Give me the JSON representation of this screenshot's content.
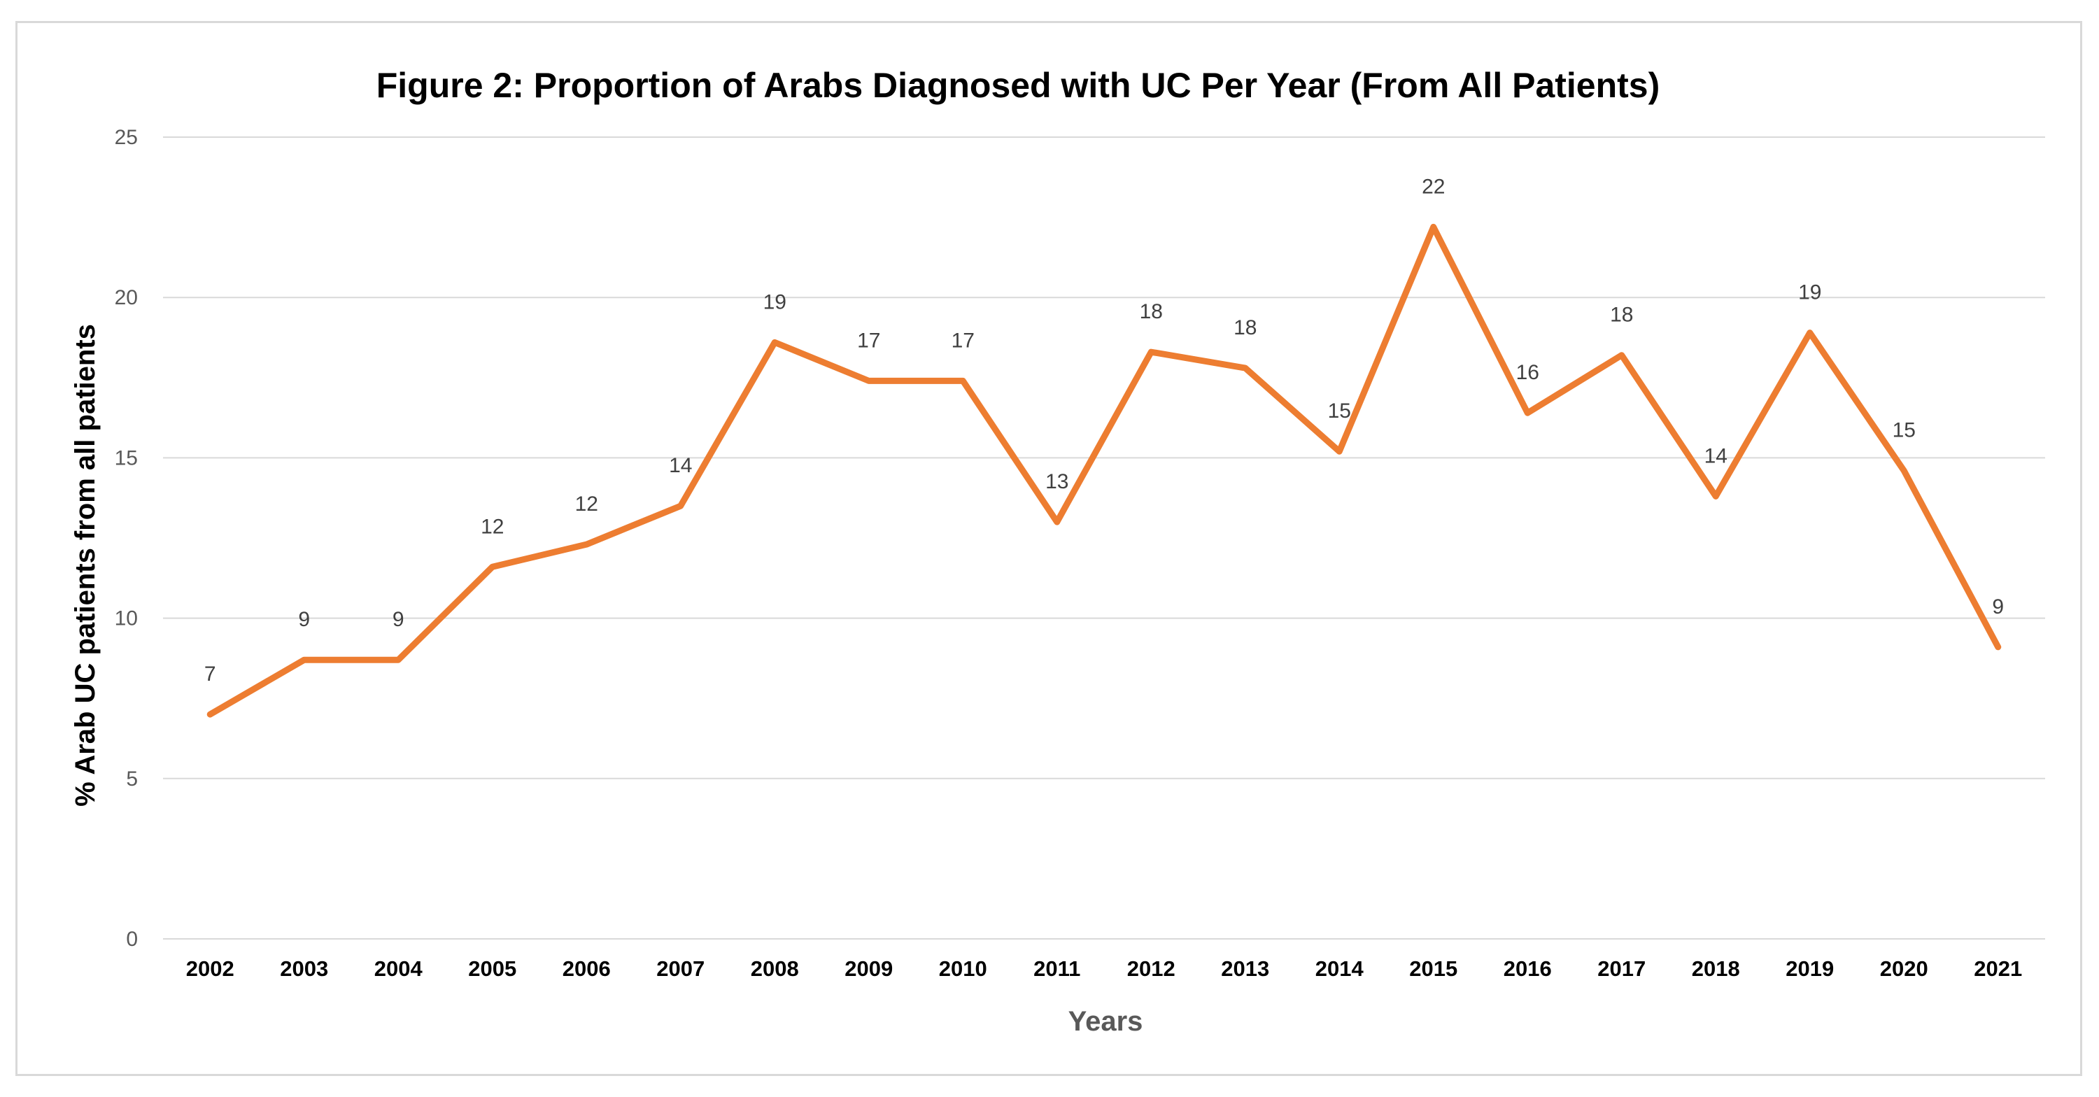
{
  "chart_data": {
    "type": "line",
    "title": "Figure 2: Proportion of Arabs Diagnosed with UC Per Year (From All Patients)",
    "xlabel": "Years",
    "ylabel": "% Arab UC patients from all patients",
    "ylim": [
      0,
      25
    ],
    "yticks": [
      "0",
      "5",
      "10",
      "15",
      "20",
      "25"
    ],
    "grid": true,
    "categories": [
      "2002",
      "2003",
      "2004",
      "2005",
      "2006",
      "2007",
      "2008",
      "2009",
      "2010",
      "2011",
      "2012",
      "2013",
      "2014",
      "2015",
      "2016",
      "2017",
      "2018",
      "2019",
      "2020",
      "2021"
    ],
    "series": [
      {
        "name": "% Arab UC patients",
        "color": "#ed7d31",
        "values": [
          7.0,
          8.7,
          8.7,
          11.6,
          12.3,
          13.5,
          18.6,
          17.4,
          17.4,
          13.0,
          18.3,
          17.8,
          15.2,
          22.2,
          16.4,
          18.2,
          13.8,
          18.9,
          14.6,
          9.1
        ],
        "data_labels": [
          "7",
          "9",
          "9",
          "12",
          "12",
          "14",
          "19",
          "17",
          "17",
          "13",
          "18",
          "18",
          "15",
          "22",
          "16",
          "18",
          "14",
          "19",
          "15",
          "9"
        ]
      }
    ]
  }
}
